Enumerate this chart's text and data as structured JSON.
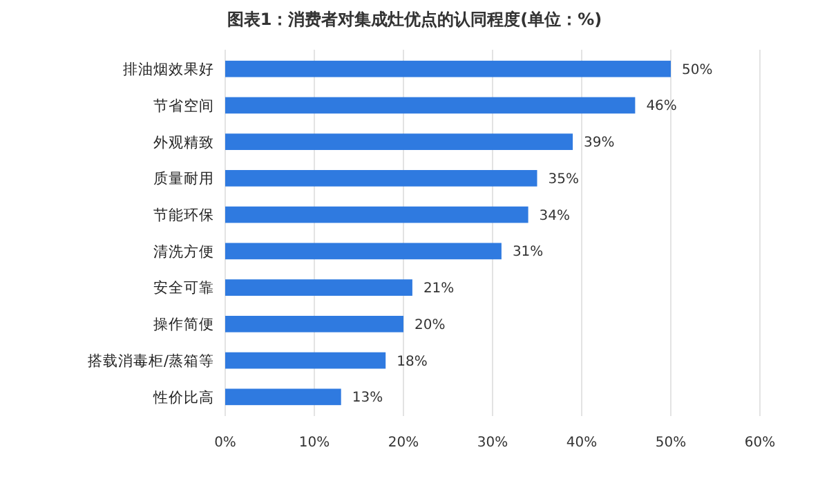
{
  "chart_data": {
    "type": "bar",
    "orientation": "horizontal",
    "title": "图表1：消费者对集成灶优点的认同程度(单位：%)",
    "categories": [
      "排油烟效果好",
      "节省空间",
      "外观精致",
      "质量耐用",
      "节能环保",
      "清洗方便",
      "安全可靠",
      "操作简便",
      "搭载消毒柜/蒸箱等",
      "性价比高"
    ],
    "values": [
      50,
      46,
      39,
      35,
      34,
      31,
      21,
      20,
      18,
      13
    ],
    "value_labels": [
      "50%",
      "46%",
      "39%",
      "35%",
      "34%",
      "31%",
      "21%",
      "20%",
      "18%",
      "13%"
    ],
    "color": "#2f7ae0",
    "xlim": [
      0,
      60
    ],
    "xticks": [
      {
        "value": 0,
        "label": "0%"
      },
      {
        "value": 10,
        "label": "10%"
      },
      {
        "value": 20,
        "label": "20%"
      },
      {
        "value": 30,
        "label": "30%"
      },
      {
        "value": 40,
        "label": "40%"
      },
      {
        "value": 50,
        "label": "50%"
      },
      {
        "value": 60,
        "label": "60%"
      }
    ],
    "grid": "x"
  }
}
